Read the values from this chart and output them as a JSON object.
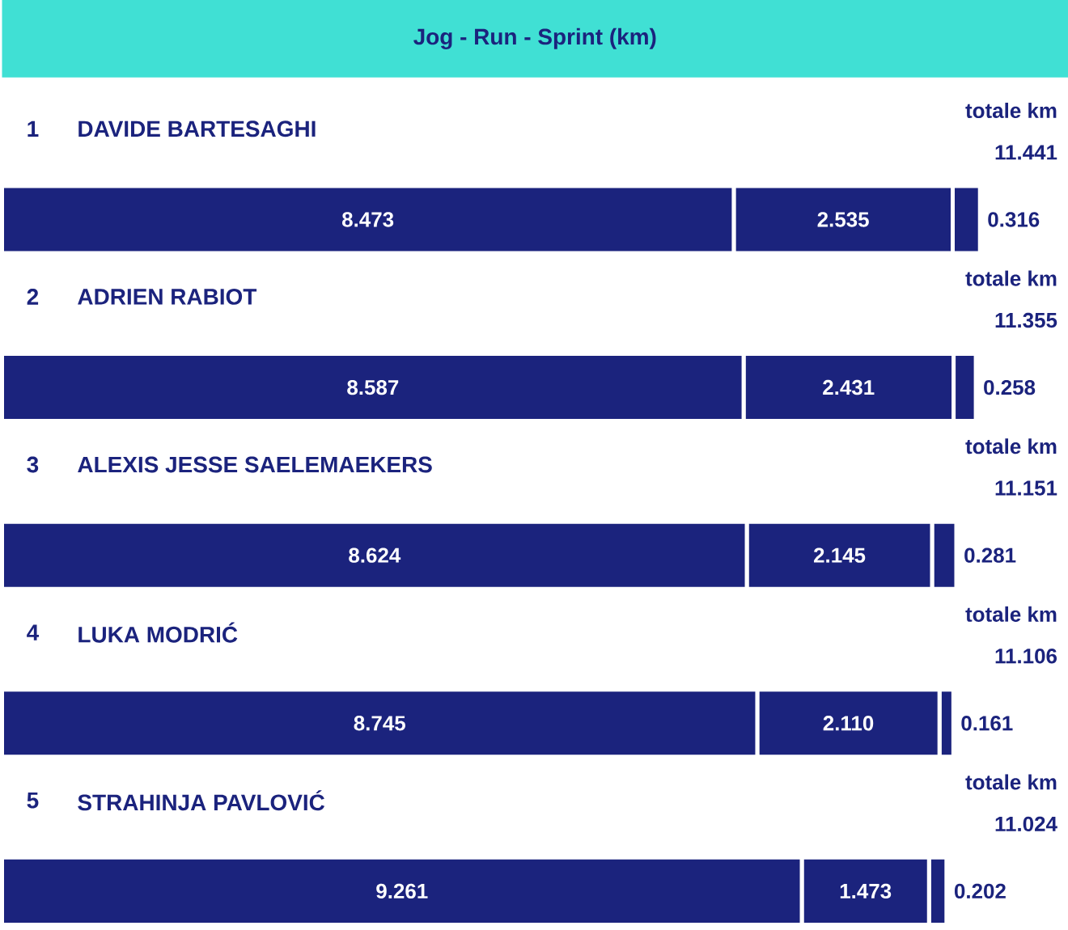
{
  "chart_data": {
    "type": "bar",
    "orientation": "horizontal",
    "stacked": true,
    "title": "Jog - Run - Sprint (km)",
    "categories": [
      "DAVIDE BARTESAGHI",
      "ADRIEN RABIOT",
      "ALEXIS JESSE SAELEMAEKERS",
      "LUKA MODRIĆ",
      "STRAHINJA PAVLOVIĆ"
    ],
    "series": [
      {
        "color": "#1b237d",
        "values": [
          8.473,
          8.587,
          8.624,
          8.745,
          9.261
        ],
        "value_labels": [
          "8.473",
          "8.587",
          "8.624",
          "8.745",
          "9.261"
        ]
      },
      {
        "color": "#1b237d",
        "values": [
          2.535,
          2.431,
          2.145,
          2.11,
          1.473
        ],
        "value_labels": [
          "2.535",
          "2.431",
          "2.145",
          "2.110",
          "1.473"
        ]
      },
      {
        "color": "#1b237d",
        "values": [
          0.316,
          0.258,
          0.281,
          0.161,
          0.202
        ],
        "value_labels": [
          "0.316",
          "0.258",
          "0.281",
          "0.161",
          "0.202"
        ]
      }
    ],
    "annotations": [
      "1",
      "totale km",
      "11.441",
      "2",
      "totale km",
      "11.355",
      "3",
      "totale km",
      "11.151",
      "4",
      "totale km",
      "11.106",
      "5",
      "totale km",
      "11.024"
    ]
  }
}
